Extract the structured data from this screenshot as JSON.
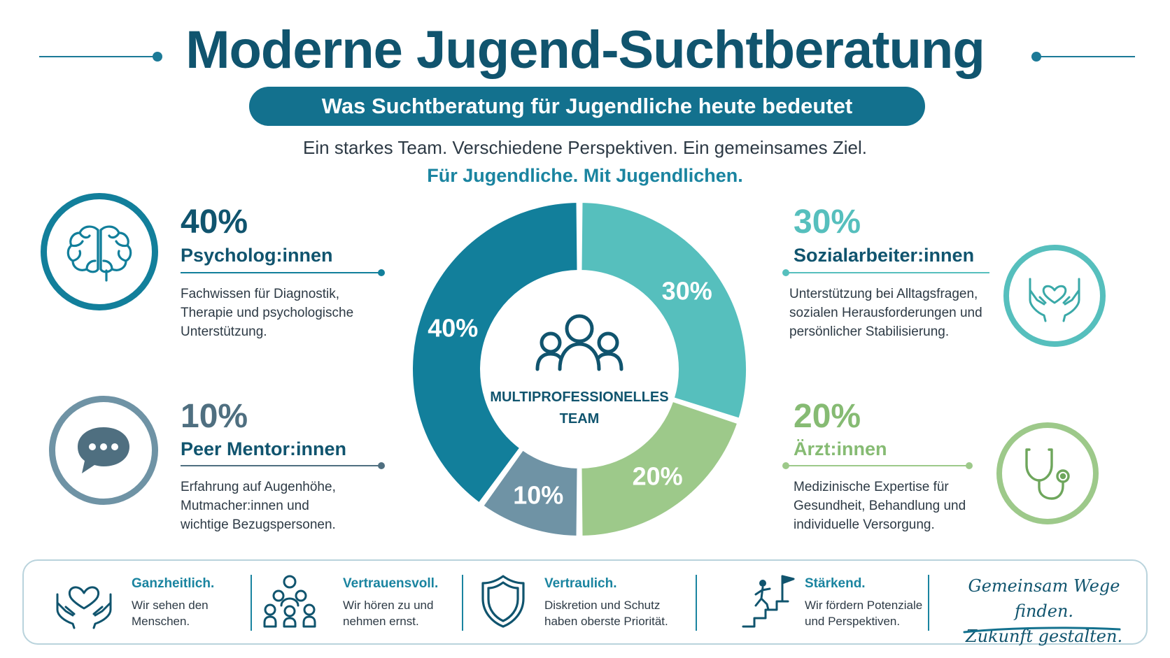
{
  "header": {
    "title": "Moderne Jugend-Suchtberatung",
    "subtitle": "Was Suchtberatung für Jugendliche heute bedeutet",
    "tagline": "Ein starkes Team. Verschiedene Perspektiven. Ein gemeinsames Ziel.",
    "tagline2": "Für Jugendliche. Mit Jugendlichen."
  },
  "colors": {
    "psychologen": "#127f9b",
    "sozialarbeiter": "#56bfbd",
    "aerzte": "#9dc98a",
    "peer": "#6f93a5",
    "dark": "#10546e"
  },
  "roles": {
    "psychologen": {
      "pct": "40%",
      "label": "Psycholog:innen",
      "desc": "Fachwissen für Diagnostik,\nTherapie und psychologische\nUnterstützung.",
      "icon": "brain-icon"
    },
    "sozialarbeiter": {
      "pct": "30%",
      "label": "Sozialarbeiter:innen",
      "desc": "Unterstützung bei Alltagsfragen,\nsozialen Herausforderungen und\npersönlicher Stabilisierung.",
      "icon": "heart-hands-icon"
    },
    "peer": {
      "pct": "10%",
      "label": "Peer Mentor:innen",
      "desc": "Erfahrung auf Augenhöhe,\nMutmacher:innen und\nwichtige Bezugspersonen.",
      "icon": "chat-bubble-icon"
    },
    "aerzte": {
      "pct": "20%",
      "label": "Ärzt:innen",
      "desc": "Medizinische Expertise für\nGesundheit, Behandlung und\nindividuelle Versorgung.",
      "icon": "stethoscope-icon"
    }
  },
  "chart_data": {
    "type": "pie",
    "center_label_line1": "MULTIPROFESSIONELLES",
    "center_label_line2": "TEAM",
    "categories": [
      "Sozialarbeiter:innen",
      "Ärzt:innen",
      "Peer Mentor:innen",
      "Psycholog:innen"
    ],
    "values": [
      30,
      20,
      10,
      40
    ],
    "labels": [
      "30%",
      "20%",
      "10%",
      "40%"
    ],
    "colors": [
      "#56bfbd",
      "#9dc98a",
      "#6f93a5",
      "#127f9b"
    ]
  },
  "footer": {
    "items": [
      {
        "title": "Ganzheitlich.",
        "text": "Wir sehen den\nMenschen.",
        "icon": "heart-hands-icon"
      },
      {
        "title": "Vertrauensvoll.",
        "text": "Wir hören zu und\nnehmen ernst.",
        "icon": "group-icon"
      },
      {
        "title": "Vertraulich.",
        "text": "Diskretion und Schutz\nhaben oberste Priorität.",
        "icon": "shield-icon"
      },
      {
        "title": "Stärkend.",
        "text": "Wir fördern Potenziale\nund Perspektiven.",
        "icon": "stairs-flag-icon"
      }
    ],
    "slogan": "Gemeinsam Wege finden.\nZukunft gestalten."
  }
}
